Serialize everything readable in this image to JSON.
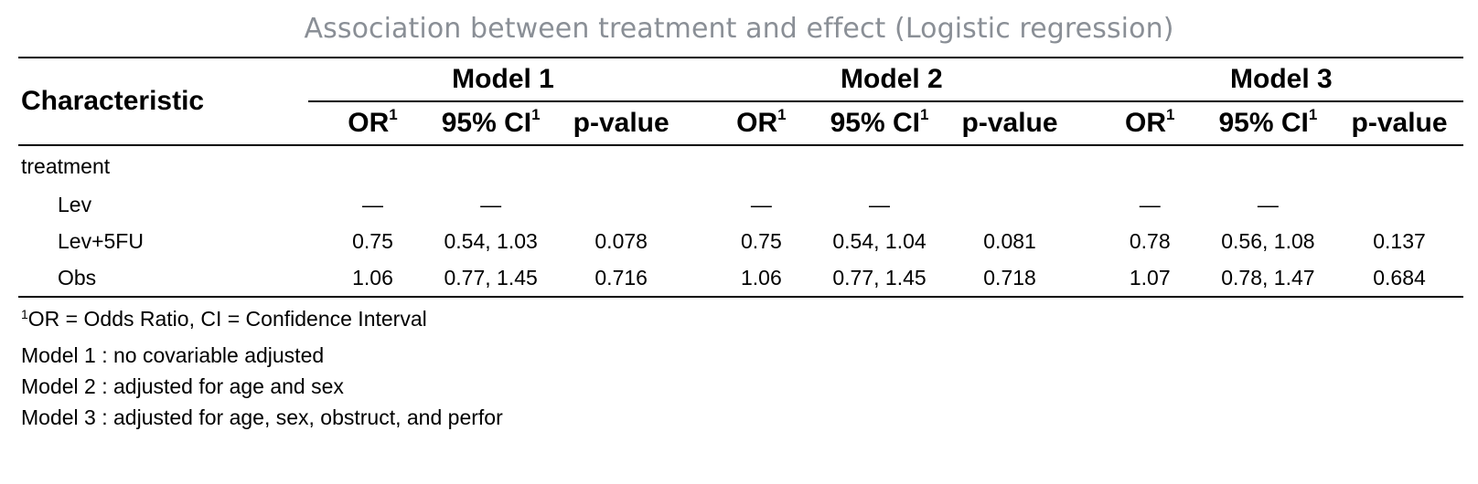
{
  "title": "Association between treatment and effect (Logistic regression)",
  "table": {
    "characteristic_header": "Characteristic",
    "models": [
      "Model 1",
      "Model 2",
      "Model 3"
    ],
    "stat_headers": {
      "or": "OR",
      "ci": "95% CI",
      "p": "p-value",
      "footnote_mark": "1"
    },
    "group": "treatment",
    "rows": [
      {
        "label": "Lev",
        "m1": {
          "or": "—",
          "ci": "—",
          "p": ""
        },
        "m2": {
          "or": "—",
          "ci": "—",
          "p": ""
        },
        "m3": {
          "or": "—",
          "ci": "—",
          "p": ""
        }
      },
      {
        "label": "Lev+5FU",
        "m1": {
          "or": "0.75",
          "ci": "0.54, 1.03",
          "p": "0.078"
        },
        "m2": {
          "or": "0.75",
          "ci": "0.54, 1.04",
          "p": "0.081"
        },
        "m3": {
          "or": "0.78",
          "ci": "0.56, 1.08",
          "p": "0.137"
        }
      },
      {
        "label": "Obs",
        "m1": {
          "or": "1.06",
          "ci": "0.77, 1.45",
          "p": "0.716"
        },
        "m2": {
          "or": "1.06",
          "ci": "0.77, 1.45",
          "p": "0.718"
        },
        "m3": {
          "or": "1.07",
          "ci": "0.78, 1.47",
          "p": "0.684"
        }
      }
    ]
  },
  "footnotes": {
    "abbrev_mark": "1",
    "abbrev": "OR = Odds Ratio, CI = Confidence Interval",
    "model_notes": [
      "Model 1 : no covariable adjusted",
      "Model 2 : adjusted for age and sex",
      "Model 3 : adjusted for age, sex, obstruct, and perfor"
    ]
  }
}
